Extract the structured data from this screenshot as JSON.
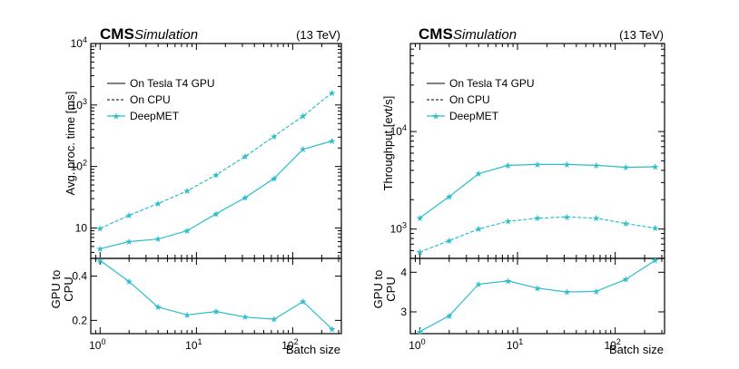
{
  "colors": {
    "series": "#2bbfc9"
  },
  "chart_data": [
    {
      "type": "line",
      "cms_label": "CMS",
      "sim_label": "Simulation",
      "energy_label": "(13 TeV)",
      "ylabel": "Avg. proc. time [ms]",
      "xlabel": "",
      "xscale": "log",
      "yscale": "log",
      "xlim": [
        0.8,
        320
      ],
      "ylim": [
        3.2,
        10000
      ],
      "xticks": [
        {
          "v": 1,
          "l": "10",
          "e": "0"
        },
        {
          "v": 10,
          "l": "10",
          "e": "1"
        },
        {
          "v": 100,
          "l": "10",
          "e": "2"
        }
      ],
      "yticks": [
        {
          "v": 10,
          "l": "10",
          "e": ""
        },
        {
          "v": 100,
          "l": "10",
          "e": "2"
        },
        {
          "v": 1000,
          "l": "10",
          "e": "3"
        },
        {
          "v": 10000,
          "l": "10",
          "e": "4"
        }
      ],
      "x": [
        1,
        2,
        4,
        8,
        16,
        32,
        64,
        128,
        256
      ],
      "series": [
        {
          "name": "On Tesla T4 GPU",
          "style": "solid",
          "values": [
            4.6,
            6.0,
            6.6,
            9.0,
            17,
            31,
            64,
            190,
            260
          ]
        },
        {
          "name": "On CPU",
          "style": "dashed",
          "values": [
            9.8,
            16,
            25,
            40,
            73,
            145,
            310,
            660,
            1580
          ]
        }
      ],
      "legend": [
        "On Tesla T4 GPU",
        "On CPU",
        "DeepMET"
      ],
      "legend_position": "top-left",
      "ratio": {
        "ylabel_line1": "GPU to",
        "ylabel_line2": "CPU",
        "xlabel": "Batch size",
        "ylim": [
          0.14,
          0.48
        ],
        "yticks": [
          "0.2",
          "0.4"
        ],
        "ytick_values": [
          0.2,
          0.4
        ],
        "values": [
          0.47,
          0.375,
          0.26,
          0.225,
          0.24,
          0.215,
          0.205,
          0.285,
          0.16
        ]
      }
    },
    {
      "type": "line",
      "cms_label": "CMS",
      "sim_label": "Simulation",
      "energy_label": "(13 TeV)",
      "ylabel": "Throughput [evt/s]",
      "xlabel": "",
      "xscale": "log",
      "yscale": "log",
      "xlim": [
        0.8,
        320
      ],
      "ylim": [
        500,
        80000
      ],
      "xticks": [
        {
          "v": 1,
          "l": "10",
          "e": "0"
        },
        {
          "v": 10,
          "l": "10",
          "e": "1"
        },
        {
          "v": 100,
          "l": "10",
          "e": "2"
        }
      ],
      "yticks": [
        {
          "v": 1000,
          "l": "10",
          "e": "3"
        },
        {
          "v": 10000,
          "l": "10",
          "e": "4"
        }
      ],
      "x": [
        1,
        2,
        4,
        8,
        16,
        32,
        64,
        128,
        256
      ],
      "series": [
        {
          "name": "On Tesla T4 GPU",
          "style": "solid",
          "values": [
            1300,
            2150,
            3700,
            4500,
            4600,
            4600,
            4500,
            4300,
            4350
          ]
        },
        {
          "name": "On CPU",
          "style": "dashed",
          "values": [
            580,
            760,
            1000,
            1200,
            1290,
            1330,
            1290,
            1140,
            1020
          ]
        }
      ],
      "legend": [
        "On Tesla T4 GPU",
        "On CPU",
        "DeepMET"
      ],
      "legend_position": "top-left",
      "ratio": {
        "ylabel_line1": "GPU to",
        "ylabel_line2": "CPU",
        "xlabel": "Batch size",
        "ylim": [
          2.45,
          4.35
        ],
        "yticks": [
          "3",
          "4"
        ],
        "ytick_values": [
          3,
          4
        ],
        "values": [
          2.5,
          2.9,
          3.7,
          3.78,
          3.6,
          3.5,
          3.52,
          3.82,
          4.3
        ]
      }
    }
  ]
}
